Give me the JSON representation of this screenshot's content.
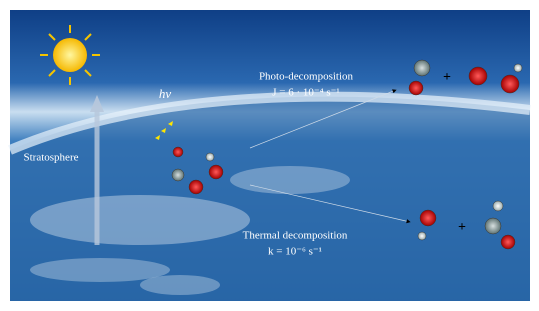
{
  "labels": {
    "photon": "hν",
    "stratosphere": "Stratosphere",
    "photo": {
      "title": "Photo-decomposition",
      "rate": "J = 6 · 10⁻⁴ s⁻¹"
    },
    "thermal": {
      "title": "Thermal decomposition",
      "rate": "k = 10⁻⁶ s⁻¹"
    },
    "plus": "+"
  }
}
